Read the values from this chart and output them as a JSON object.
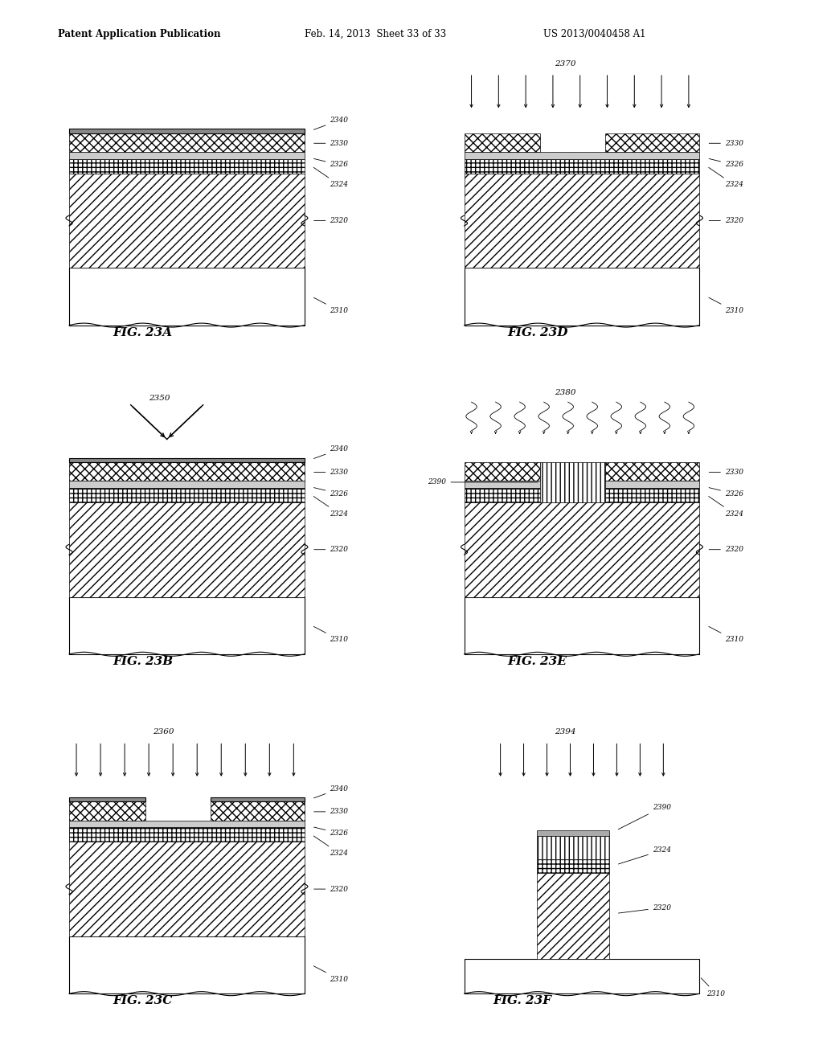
{
  "header_left": "Patent Application Publication",
  "header_mid": "Feb. 14, 2013  Sheet 33 of 33",
  "header_right": "US 2013/0040458 A1",
  "bg_color": "#ffffff"
}
